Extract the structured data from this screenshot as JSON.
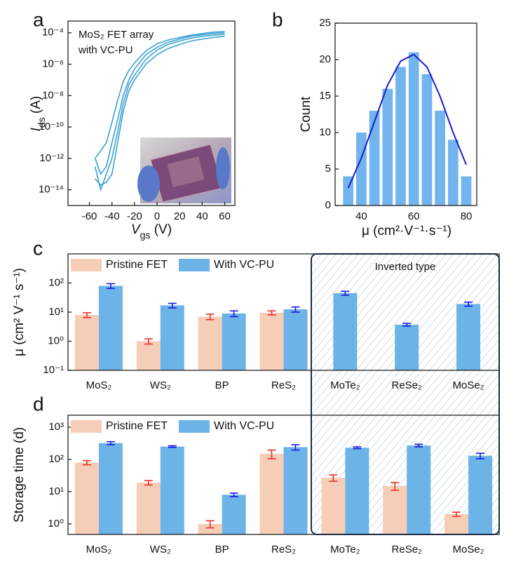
{
  "chart_data": [
    {
      "type": "line",
      "panel_label": "a",
      "annotation": [
        "MoS₂ FET array",
        "with VC-PU"
      ],
      "xlabel": [
        "V",
        "gs",
        " (V)"
      ],
      "ylabel": [
        "I",
        "ds",
        " (A)"
      ],
      "ylog": true,
      "xlim": [
        -79,
        69
      ],
      "ylim": [
        1e-15,
        0.00056
      ],
      "xticks": [
        -60,
        -40,
        -20,
        0,
        20,
        40,
        60
      ],
      "yticks": [
        {
          "value": 0.0001,
          "label": "10⁻⁴"
        },
        {
          "value": 1e-06,
          "label": "10⁻⁶"
        },
        {
          "value": 1e-08,
          "label": "10⁻⁸"
        },
        {
          "value": 1e-10,
          "label": "10⁻¹⁰"
        },
        {
          "value": 1e-12,
          "label": "10⁻¹²"
        },
        {
          "value": 1e-14,
          "label": "10⁻¹⁴"
        }
      ],
      "x": [
        -55,
        -50,
        -45,
        -40,
        -35,
        -30,
        -25,
        -20,
        -10,
        0,
        10,
        20,
        30,
        40,
        50,
        60
      ],
      "series": [
        {
          "color": "#3aa0d2",
          "values": [
            1e-12,
            1e-13,
            3e-13,
            1e-11,
            3e-10,
            1e-08,
            1e-07,
            5e-07,
            4e-06,
            1.2e-05,
            2.5e-05,
            4e-05,
            6e-05,
            7.5e-05,
            9e-05,
            0.0001
          ]
        },
        {
          "color": "#3aa0d2",
          "values": [
            3e-13,
            1e-14,
            1e-13,
            1e-12,
            5e-11,
            3e-09,
            5e-08,
            2e-07,
            2e-06,
            8e-06,
            1.8e-05,
            3e-05,
            4.5e-05,
            6e-05,
            7e-05,
            8e-05
          ]
        },
        {
          "color": "#3aa0d2",
          "values": [
            1e-12,
            3e-12,
            1e-11,
            2e-10,
            5e-09,
            8e-08,
            4e-07,
            1.2e-06,
            7e-06,
            2e-05,
            3.5e-05,
            5e-05,
            7e-05,
            9e-05,
            0.00011,
            0.00012
          ]
        },
        {
          "color": "#3aa0d2",
          "values": [
            5e-14,
            2e-14,
            3e-14,
            1e-13,
            1e-11,
            1e-09,
            2e-08,
            1e-07,
            1e-06,
            4e-06,
            1e-05,
            1.8e-05,
            3e-05,
            4e-05,
            5e-05,
            6e-05
          ]
        }
      ]
    },
    {
      "type": "histogram",
      "panel_label": "b",
      "xlabel": "μ (cm²·V⁻¹·s⁻¹)",
      "ylabel": "Count",
      "xlim": [
        30,
        84
      ],
      "ylim": [
        0,
        25
      ],
      "xticks": [
        40,
        60,
        80
      ],
      "yticks": [
        0,
        5,
        10,
        15,
        20,
        25
      ],
      "bins": [
        32.5,
        37.5,
        42.5,
        47.5,
        52.5,
        57.5,
        62.5,
        67.5,
        72.5,
        77.5,
        82.5
      ],
      "counts": [
        4,
        10,
        13,
        16,
        19,
        21,
        18,
        13,
        9,
        4
      ],
      "color": "#72b4ee",
      "fit": {
        "color": "#1c1cc8",
        "x": [
          35,
          40,
          45,
          50,
          55,
          60,
          65,
          70,
          75,
          80
        ],
        "values": [
          2.4,
          6.5,
          11.5,
          16.5,
          19.8,
          20.7,
          19,
          15,
          10,
          5.6
        ]
      }
    },
    {
      "type": "bar",
      "panel_label": "c",
      "ylabel": "μ (cm² V⁻¹ s⁻¹)",
      "annotation": "Inverted type",
      "ylog": true,
      "ylim": [
        0.1,
        1000
      ],
      "yticks": [
        {
          "value": 0.1,
          "label": "10⁻¹"
        },
        {
          "value": 1,
          "label": "10⁰"
        },
        {
          "value": 10,
          "label": "10¹"
        },
        {
          "value": 100,
          "label": "10²"
        }
      ],
      "categories": [
        "MoS₂",
        "WS₂",
        "BP",
        "ReS₂",
        "MoTe₂",
        "ReSe₂",
        "MoSe₂"
      ],
      "legend": true,
      "series": [
        {
          "name": "Pristine FET",
          "color": "#f6cdb6",
          "error_color": "#e8302a",
          "values": [
            8,
            1,
            7,
            9.5,
            null,
            null,
            null
          ],
          "errors": [
            1.5,
            0.2,
            1.5,
            1.5,
            null,
            null,
            null
          ]
        },
        {
          "name": "With VC-PU",
          "color": "#6cb4e8",
          "error_color": "#1a1ae0",
          "values": [
            80,
            17,
            9,
            12.5,
            45,
            3.7,
            19
          ],
          "errors": [
            15,
            3,
            2,
            2.5,
            7,
            0.4,
            3
          ]
        }
      ]
    },
    {
      "type": "bar",
      "panel_label": "d",
      "ylabel": "Storage time (d)",
      "ylog": true,
      "ylim": [
        0.47,
        2350
      ],
      "yticks": [
        {
          "value": 1,
          "label": "10⁰"
        },
        {
          "value": 10,
          "label": "10¹"
        },
        {
          "value": 100,
          "label": "10²"
        },
        {
          "value": 1000,
          "label": "10³"
        }
      ],
      "categories": [
        "MoS₂",
        "WS₂",
        "BP",
        "ReS₂",
        "MoTe₂",
        "ReSe₂",
        "MoSe₂"
      ],
      "legend": true,
      "series": [
        {
          "name": "Pristine FET",
          "color": "#f6cdb6",
          "error_color": "#e8302a",
          "values": [
            80,
            19,
            1,
            150,
            27,
            15,
            2
          ],
          "errors": [
            12,
            3,
            0.25,
            45,
            6,
            4,
            0.3
          ]
        },
        {
          "name": "With VC-PU",
          "color": "#6cb4e8",
          "error_color": "#1a1ae0",
          "values": [
            320,
            250,
            8,
            240,
            230,
            270,
            130
          ],
          "errors": [
            35,
            15,
            1,
            45,
            15,
            25,
            25
          ]
        }
      ]
    }
  ]
}
